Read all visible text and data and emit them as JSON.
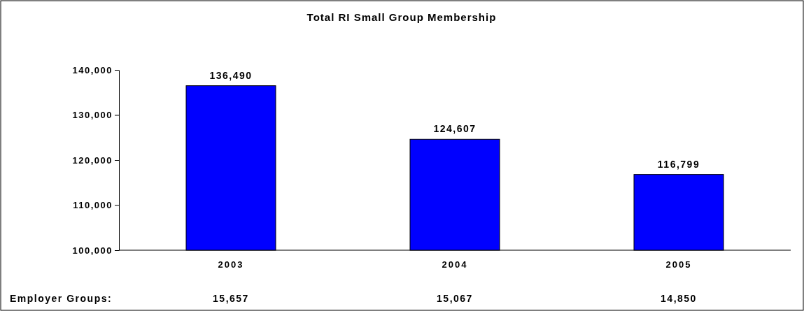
{
  "chart_data": {
    "type": "bar",
    "title": "Total RI Small Group Membership",
    "categories": [
      "2003",
      "2004",
      "2005"
    ],
    "values": [
      136490,
      124607,
      116799
    ],
    "color": "#0000ff",
    "ylim": [
      100000,
      140000
    ],
    "yticks": [
      {
        "value": 100000,
        "label": "100,000"
      },
      {
        "value": 110000,
        "label": "110,000"
      },
      {
        "value": 120000,
        "label": "120,000"
      },
      {
        "value": 130000,
        "label": "130,000"
      },
      {
        "value": 140000,
        "label": "140,000"
      }
    ],
    "value_labels": [
      "136,490",
      "124,607",
      "116,799"
    ],
    "grid": false,
    "annotations": [
      "Employer Groups:",
      "15,657",
      "15,067",
      "14,850"
    ]
  }
}
